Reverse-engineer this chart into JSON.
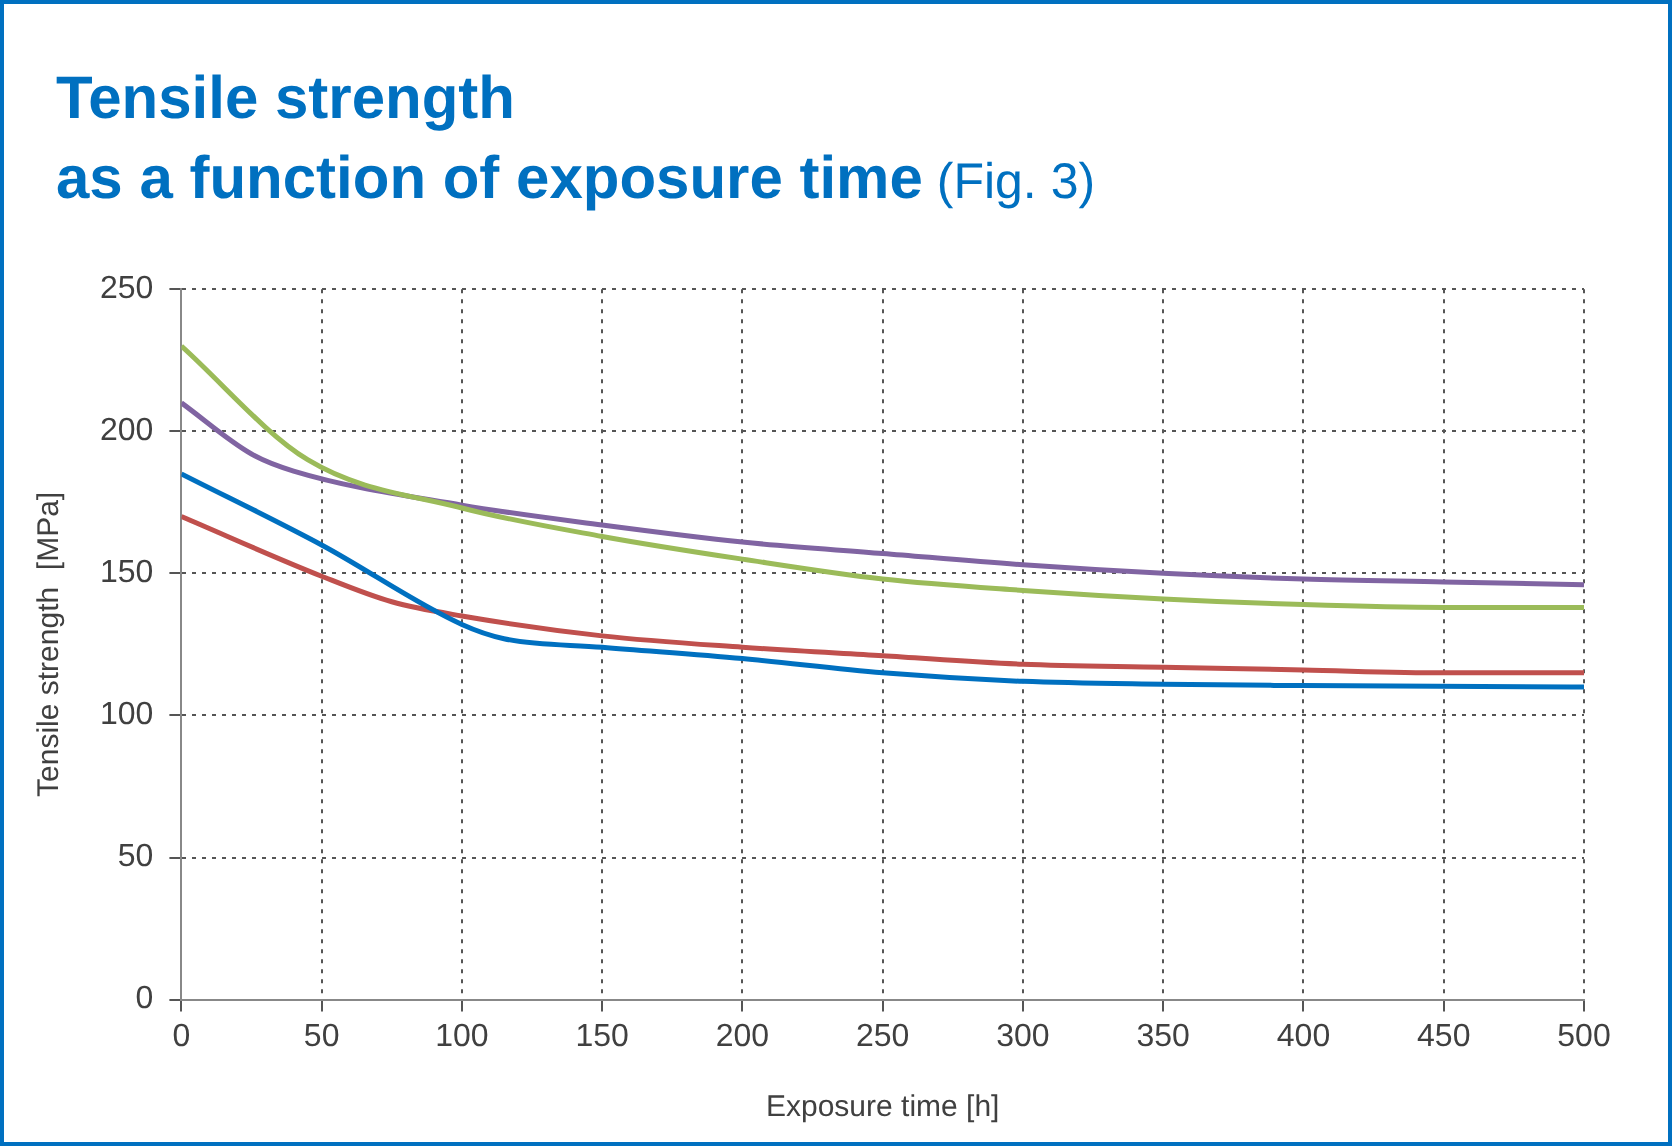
{
  "chart_data": {
    "type": "line",
    "title": "Tensile strength\nas a function of exposure time",
    "subtitle": "(Fig. 3)",
    "xlabel": "Exposure time [h]",
    "ylabel": "Tensile strength  [MPa]",
    "series": [
      {
        "color": "#9bbb59",
        "x": [
          0,
          45,
          100,
          150,
          200,
          250,
          300,
          350,
          400,
          450,
          500
        ],
        "values": [
          230,
          190,
          173,
          163,
          155,
          148,
          144,
          141,
          139,
          138,
          138
        ]
      },
      {
        "color": "#8064a2",
        "x": [
          0,
          25,
          40,
          100,
          150,
          200,
          250,
          300,
          350,
          400,
          450,
          500
        ],
        "values": [
          210,
          192,
          186,
          174,
          167,
          161,
          157,
          153,
          150,
          148,
          147,
          146
        ]
      },
      {
        "color": "#0070c0",
        "x": [
          0,
          50,
          100,
          115,
          150,
          200,
          250,
          300,
          350,
          400,
          500
        ],
        "values": [
          185,
          160,
          132,
          127,
          124,
          120,
          115,
          112,
          111,
          110.5,
          110
        ]
      },
      {
        "color": "#c0504d",
        "x": [
          0,
          50,
          75,
          100,
          150,
          200,
          250,
          300,
          350,
          400,
          450,
          500
        ],
        "values": [
          170,
          149,
          140,
          135,
          128,
          124,
          121,
          118,
          117,
          116,
          115,
          115
        ]
      }
    ],
    "xlim": [
      0,
      500
    ],
    "xticks": [
      0,
      50,
      100,
      150,
      200,
      250,
      300,
      350,
      400,
      450,
      500
    ],
    "ylim": [
      0,
      250
    ],
    "yticks": [
      0,
      50,
      100,
      150,
      200,
      250
    ],
    "grid": true,
    "marker": "none",
    "line_style": "solid"
  }
}
